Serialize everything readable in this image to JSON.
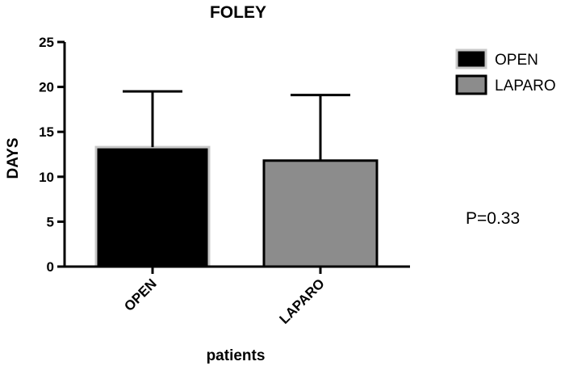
{
  "chart_data": {
    "type": "bar",
    "title": "FOLEY",
    "xlabel": "patients",
    "ylabel": "DAYS",
    "ylim": [
      0,
      25
    ],
    "yticks": [
      0,
      5,
      10,
      15,
      20,
      25
    ],
    "categories": [
      "OPEN",
      "LAPARO"
    ],
    "values": [
      13.3,
      11.8
    ],
    "error_upper": [
      19.5,
      19.1
    ],
    "legend": [
      {
        "label": "OPEN",
        "color": "#000000"
      },
      {
        "label": "LAPARO",
        "color": "#8c8c8c"
      }
    ],
    "legend_position": "top-right",
    "annotation": "P=0.33",
    "grid": false,
    "colors": {
      "OPEN": "#000000",
      "LAPARO": "#8c8c8c",
      "open_border": "#c8c8c8"
    }
  }
}
